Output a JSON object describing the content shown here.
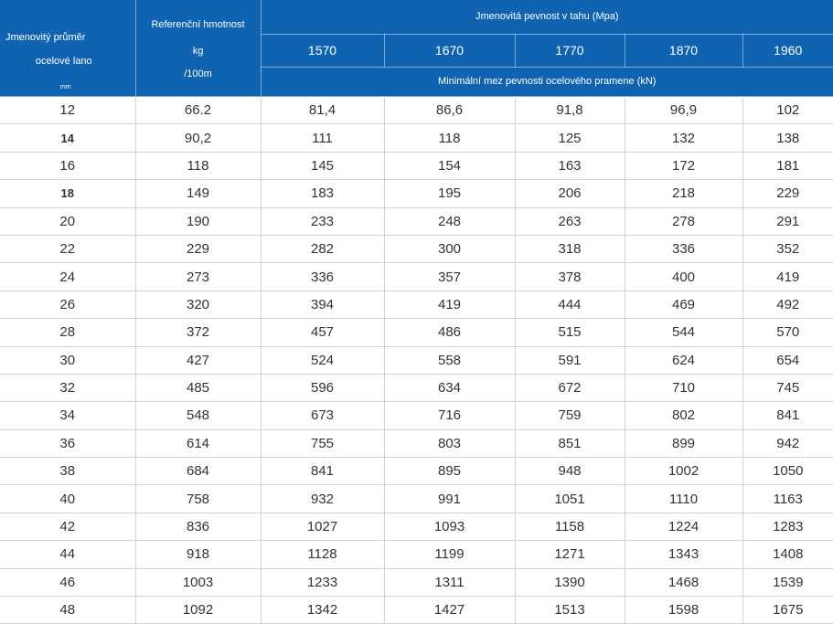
{
  "colors": {
    "header_bg": "#0f63b1",
    "header_text": "#ffffff",
    "body_text": "#333333",
    "grid": "#d2d2d2"
  },
  "table": {
    "header": {
      "diameter": {
        "line1": "Jmenovitý průměr",
        "line2": "ocelové lano",
        "unit": "mm"
      },
      "weight": {
        "line1": "Referenční hmotnost",
        "line2": "kg",
        "line3": "/100m"
      },
      "strength_title": "Jmenovitá pevnost v tahu (Mpa)",
      "grades": [
        "1570",
        "1670",
        "1770",
        "1870",
        "1960"
      ],
      "breaking_title": "Minimální mez pevnosti ocelového pramene (kN)"
    },
    "rows": [
      {
        "d": "12",
        "w": "66.2",
        "v": [
          "81,4",
          "86,6",
          "91,8",
          "96,9",
          "102"
        ],
        "bold": false
      },
      {
        "d": "14",
        "w": "90,2",
        "v": [
          "111",
          "118",
          "125",
          "132",
          "138"
        ],
        "bold": true
      },
      {
        "d": "16",
        "w": "118",
        "v": [
          "145",
          "154",
          "163",
          "172",
          "181"
        ],
        "bold": false
      },
      {
        "d": "18",
        "w": "149",
        "v": [
          "183",
          "195",
          "206",
          "218",
          "229"
        ],
        "bold": true
      },
      {
        "d": "20",
        "w": "190",
        "v": [
          "233",
          "248",
          "263",
          "278",
          "291"
        ],
        "bold": false
      },
      {
        "d": "22",
        "w": "229",
        "v": [
          "282",
          "300",
          "318",
          "336",
          "352"
        ],
        "bold": false
      },
      {
        "d": "24",
        "w": "273",
        "v": [
          "336",
          "357",
          "378",
          "400",
          "419"
        ],
        "bold": false
      },
      {
        "d": "26",
        "w": "320",
        "v": [
          "394",
          "419",
          "444",
          "469",
          "492"
        ],
        "bold": false
      },
      {
        "d": "28",
        "w": "372",
        "v": [
          "457",
          "486",
          "515",
          "544",
          "570"
        ],
        "bold": false
      },
      {
        "d": "30",
        "w": "427",
        "v": [
          "524",
          "558",
          "591",
          "624",
          "654"
        ],
        "bold": false
      },
      {
        "d": "32",
        "w": "485",
        "v": [
          "596",
          "634",
          "672",
          "710",
          "745"
        ],
        "bold": false
      },
      {
        "d": "34",
        "w": "548",
        "v": [
          "673",
          "716",
          "759",
          "802",
          "841"
        ],
        "bold": false
      },
      {
        "d": "36",
        "w": "614",
        "v": [
          "755",
          "803",
          "851",
          "899",
          "942"
        ],
        "bold": false
      },
      {
        "d": "38",
        "w": "684",
        "v": [
          "841",
          "895",
          "948",
          "1002",
          "1050"
        ],
        "bold": false
      },
      {
        "d": "40",
        "w": "758",
        "v": [
          "932",
          "991",
          "1051",
          "1110",
          "1163"
        ],
        "bold": false
      },
      {
        "d": "42",
        "w": "836",
        "v": [
          "1027",
          "1093",
          "1158",
          "1224",
          "1283"
        ],
        "bold": false
      },
      {
        "d": "44",
        "w": "918",
        "v": [
          "1128",
          "1199",
          "1271",
          "1343",
          "1408"
        ],
        "bold": false
      },
      {
        "d": "46",
        "w": "1003",
        "v": [
          "1233",
          "1311",
          "1390",
          "1468",
          "1539"
        ],
        "bold": false
      },
      {
        "d": "48",
        "w": "1092",
        "v": [
          "1342",
          "1427",
          "1513",
          "1598",
          "1675"
        ],
        "bold": false
      }
    ]
  }
}
